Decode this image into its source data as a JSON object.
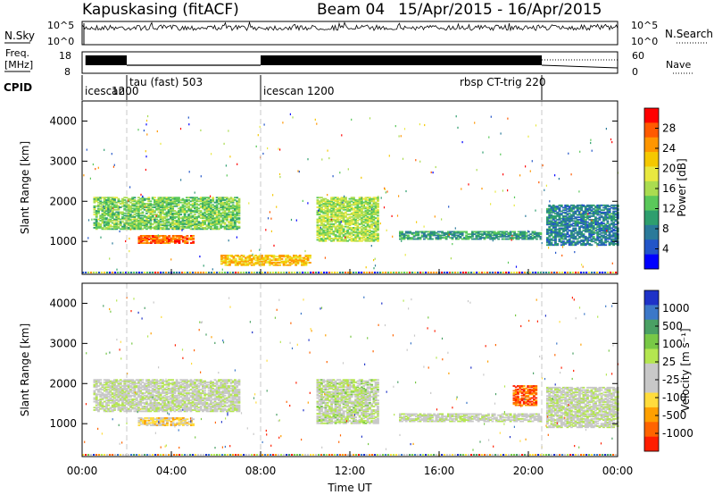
{
  "header": {
    "station": "Kapuskasing (fitACF)",
    "beam": "Beam 04",
    "date_range": "15/Apr/2015 - 16/Apr/2015"
  },
  "top_panels": {
    "nsky_label": "N.Sky",
    "nsky_ticks": [
      "10^5",
      "10^0"
    ],
    "nsearch_label": "N.Search",
    "freq_label_1": "Freq.",
    "freq_label_2": "[MHz]",
    "freq_ticks": [
      "18",
      "8"
    ],
    "nave_ticks": [
      "60",
      "0"
    ],
    "nave_label": "Nave",
    "cpid_label": "CPID",
    "cpid_entries": [
      {
        "start_hour": 0,
        "label": "icescan",
        "row": 2
      },
      {
        "start_hour": 1.2,
        "label": "1200",
        "row": 2
      },
      {
        "start_hour": 2.0,
        "label": "tau (fast) 503",
        "row": 1
      },
      {
        "start_hour": 8.0,
        "label": "icescan 1200",
        "row": 2
      },
      {
        "start_hour": 16.8,
        "label": "rbsp CT-trig 220",
        "row": 1
      }
    ],
    "cpid_boundaries": [
      0,
      2.0,
      8.0,
      20.6
    ]
  },
  "chart_data": [
    {
      "type": "heatmap",
      "title": "",
      "ylabel": "Slant Range [km]",
      "xlabel": "",
      "xlim": [
        0,
        24
      ],
      "ylim": [
        180,
        4500
      ],
      "yticks": [
        1000,
        2000,
        3000,
        4000
      ],
      "colorbar": {
        "label": "Power [dB]",
        "ticks": [
          "28",
          "24",
          "20",
          "16",
          "12",
          "8",
          "4"
        ],
        "colors": [
          "#ff0000",
          "#ff5a00",
          "#ff9600",
          "#f5c800",
          "#e8e840",
          "#aadc50",
          "#5ac85a",
          "#2e9e6e",
          "#2a7a9a",
          "#2255c8",
          "#0000ff"
        ]
      },
      "regions": [
        {
          "name": "band-main",
          "t0": 0.5,
          "t1": 7.0,
          "r0": 1300,
          "r1": 2100,
          "value": 14
        },
        {
          "name": "band-strong",
          "t0": 2.5,
          "t1": 5.0,
          "r0": 950,
          "r1": 1150,
          "value": 27
        },
        {
          "name": "band-mid",
          "t0": 10.5,
          "t1": 13.2,
          "r0": 1000,
          "r1": 2100,
          "value": 16
        },
        {
          "name": "band-late",
          "t0": 14.2,
          "t1": 20.5,
          "r0": 1050,
          "r1": 1250,
          "value": 10
        },
        {
          "name": "band-end",
          "t0": 20.8,
          "t1": 24.0,
          "r0": 900,
          "r1": 1900,
          "value": 8
        },
        {
          "name": "ground-echo",
          "t0": 6.2,
          "t1": 10.2,
          "r0": 400,
          "r1": 650,
          "value": 22
        }
      ]
    },
    {
      "type": "heatmap",
      "title": "",
      "ylabel": "Slant Range [km]",
      "xlabel": "Time UT",
      "xlim": [
        0,
        24
      ],
      "ylim": [
        180,
        4500
      ],
      "yticks": [
        1000,
        2000,
        3000,
        4000
      ],
      "xticks": [
        "00:00",
        "04:00",
        "08:00",
        "12:00",
        "16:00",
        "20:00",
        "00:00"
      ],
      "colorbar": {
        "label": "Velocity [m s⁻¹]",
        "ticks": [
          "1000",
          "500",
          "100",
          "25",
          "-25",
          "-100",
          "-500",
          "-1000"
        ],
        "colors": [
          "#1e32c8",
          "#3c78c8",
          "#4aa064",
          "#78c846",
          "#b4e650",
          "#c8c8c8",
          "#c8c8c8",
          "#ffdc3c",
          "#ffa000",
          "#ff6400",
          "#ff1e00"
        ]
      },
      "regions": [
        {
          "name": "band-main",
          "t0": 0.5,
          "t1": 7.0,
          "r0": 1300,
          "r1": 2100,
          "value": 0
        },
        {
          "name": "band-strong",
          "t0": 2.5,
          "t1": 5.0,
          "r0": 950,
          "r1": 1150,
          "value": -400
        },
        {
          "name": "band-mid",
          "t0": 10.5,
          "t1": 13.2,
          "r0": 1000,
          "r1": 2100,
          "value": 80
        },
        {
          "name": "band-late",
          "t0": 14.2,
          "t1": 20.5,
          "r0": 1050,
          "r1": 1250,
          "value": 0
        },
        {
          "name": "band-end",
          "t0": 20.8,
          "t1": 24.0,
          "r0": 900,
          "r1": 1900,
          "value": 0
        },
        {
          "name": "flow-red",
          "t0": 19.3,
          "t1": 20.3,
          "r0": 1450,
          "r1": 1950,
          "value": -900
        }
      ]
    }
  ]
}
